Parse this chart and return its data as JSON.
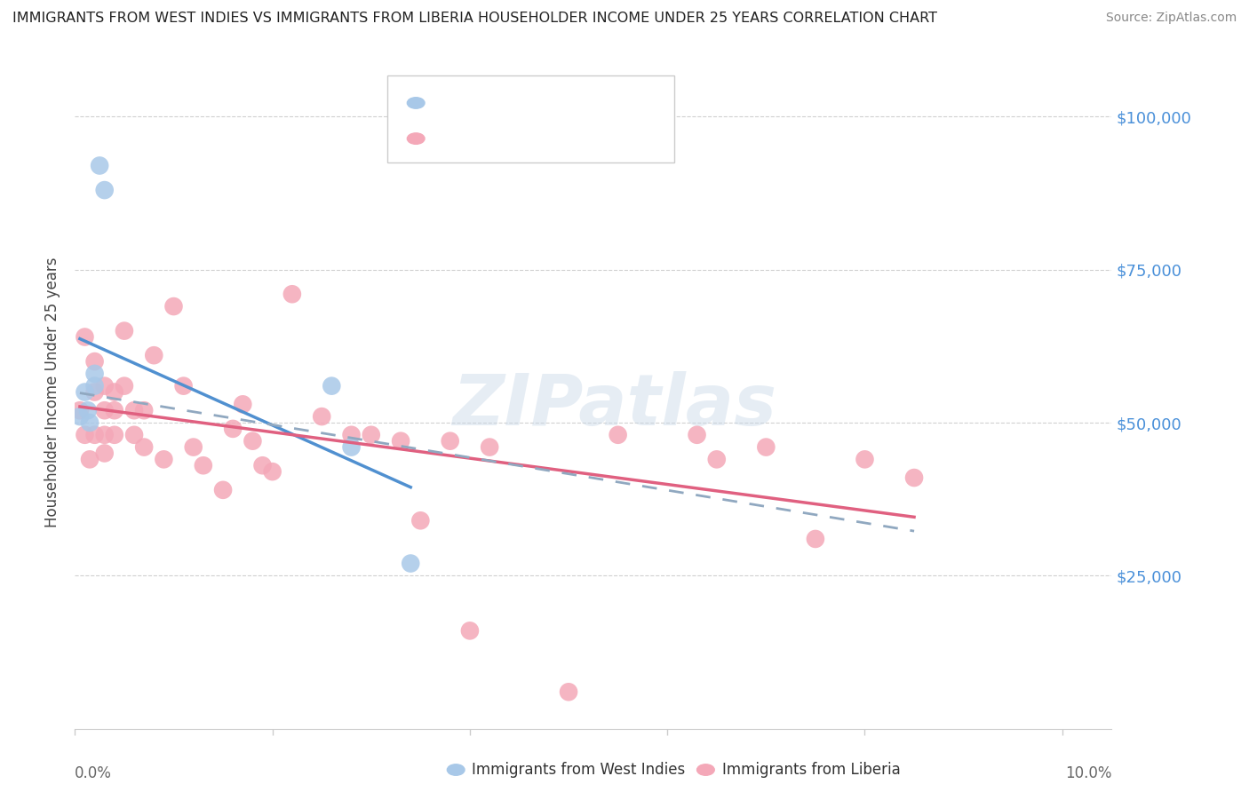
{
  "title": "IMMIGRANTS FROM WEST INDIES VS IMMIGRANTS FROM LIBERIA HOUSEHOLDER INCOME UNDER 25 YEARS CORRELATION CHART",
  "source": "Source: ZipAtlas.com",
  "ylabel": "Householder Income Under 25 years",
  "ytick_labels": [
    "$100,000",
    "$75,000",
    "$50,000",
    "$25,000"
  ],
  "ytick_values": [
    100000,
    75000,
    50000,
    25000
  ],
  "ylim": [
    0,
    110000
  ],
  "xlim": [
    0.0,
    0.105
  ],
  "color_west_indies": "#a8c8e8",
  "color_liberia": "#f4a8b8",
  "color_line_west_indies": "#5090d0",
  "color_line_liberia": "#e06080",
  "color_dashed": "#90a8c0",
  "color_title": "#222222",
  "color_source": "#888888",
  "color_ytick": "#4a90d9",
  "background_color": "#ffffff",
  "west_indies_x": [
    0.0005,
    0.001,
    0.0013,
    0.0015,
    0.002,
    0.002,
    0.0025,
    0.003,
    0.026,
    0.028,
    0.034
  ],
  "west_indies_y": [
    51000,
    55000,
    52000,
    50000,
    58000,
    56000,
    92000,
    88000,
    56000,
    46000,
    27000
  ],
  "liberia_x": [
    0.0005,
    0.001,
    0.001,
    0.0015,
    0.002,
    0.002,
    0.002,
    0.003,
    0.003,
    0.003,
    0.003,
    0.004,
    0.004,
    0.004,
    0.005,
    0.005,
    0.006,
    0.006,
    0.007,
    0.007,
    0.008,
    0.009,
    0.01,
    0.011,
    0.012,
    0.013,
    0.015,
    0.016,
    0.017,
    0.018,
    0.019,
    0.02,
    0.022,
    0.025,
    0.03,
    0.033,
    0.035,
    0.04,
    0.05,
    0.055,
    0.063,
    0.065,
    0.07,
    0.075,
    0.08,
    0.085,
    0.038,
    0.042,
    0.028
  ],
  "liberia_y": [
    52000,
    64000,
    48000,
    44000,
    60000,
    55000,
    48000,
    56000,
    52000,
    48000,
    45000,
    55000,
    52000,
    48000,
    65000,
    56000,
    52000,
    48000,
    52000,
    46000,
    61000,
    44000,
    69000,
    56000,
    46000,
    43000,
    39000,
    49000,
    53000,
    47000,
    43000,
    42000,
    71000,
    51000,
    48000,
    47000,
    34000,
    16000,
    6000,
    48000,
    48000,
    44000,
    46000,
    31000,
    44000,
    41000,
    47000,
    46000,
    48000
  ],
  "watermark": "ZIPatlas"
}
